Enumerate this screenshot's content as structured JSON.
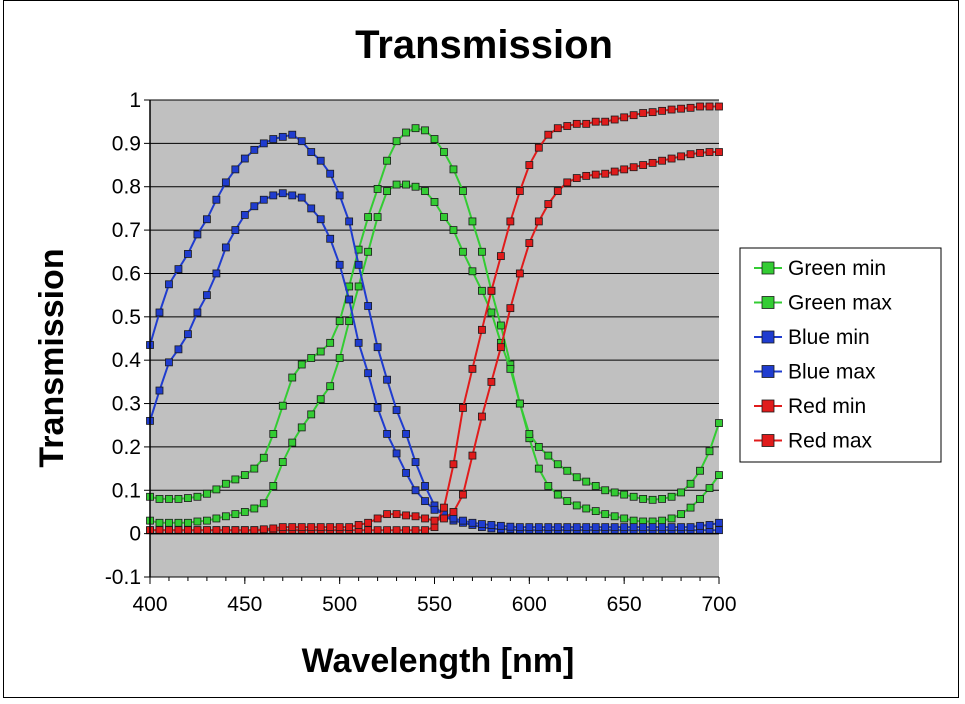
{
  "chart_data": {
    "type": "line",
    "title": "Transmission",
    "xlabel": "Wavelength [nm]",
    "ylabel": "Transmission",
    "xlim": [
      400,
      700
    ],
    "ylim": [
      -0.1,
      1
    ],
    "x_ticks": [
      400,
      450,
      500,
      550,
      600,
      650,
      700
    ],
    "x_tick_labels": [
      "400",
      "450",
      "500",
      "550",
      "600",
      "650",
      "700"
    ],
    "y_ticks": [
      -0.1,
      0,
      0.1,
      0.2,
      0.3,
      0.4,
      0.5,
      0.6,
      0.7,
      0.8,
      0.9,
      1
    ],
    "y_tick_labels": [
      "-0.1",
      "0",
      "0.1",
      "0.2",
      "0.3",
      "0.4",
      "0.5",
      "0.6",
      "0.7",
      "0.8",
      "0.9",
      "1"
    ],
    "grid": "horizontal",
    "plot_background": "#c0c0c0",
    "legend_position": "right",
    "marker": "square",
    "x": [
      400,
      405,
      410,
      415,
      420,
      425,
      430,
      435,
      440,
      445,
      450,
      455,
      460,
      465,
      470,
      475,
      480,
      485,
      490,
      495,
      500,
      505,
      510,
      515,
      520,
      525,
      530,
      535,
      540,
      545,
      550,
      555,
      560,
      565,
      570,
      575,
      580,
      585,
      590,
      595,
      600,
      605,
      610,
      615,
      620,
      625,
      630,
      635,
      640,
      645,
      650,
      655,
      660,
      665,
      670,
      675,
      680,
      685,
      690,
      695,
      700
    ],
    "series": [
      {
        "name": "Green min",
        "color": "#33cc33",
        "values": [
          0.085,
          0.08,
          0.08,
          0.08,
          0.082,
          0.085,
          0.092,
          0.102,
          0.115,
          0.125,
          0.135,
          0.15,
          0.175,
          0.23,
          0.295,
          0.36,
          0.39,
          0.405,
          0.42,
          0.44,
          0.49,
          0.57,
          0.655,
          0.73,
          0.795,
          0.86,
          0.905,
          0.925,
          0.935,
          0.93,
          0.91,
          0.88,
          0.84,
          0.79,
          0.72,
          0.65,
          0.56,
          0.48,
          0.39,
          0.3,
          0.22,
          0.15,
          0.11,
          0.09,
          0.075,
          0.065,
          0.058,
          0.052,
          0.045,
          0.04,
          0.035,
          0.03,
          0.028,
          0.028,
          0.03,
          0.035,
          0.045,
          0.06,
          0.08,
          0.105,
          0.135
        ]
      },
      {
        "name": "Green max",
        "color": "#33cc33",
        "values": [
          0.03,
          0.025,
          0.025,
          0.025,
          0.025,
          0.028,
          0.03,
          0.035,
          0.04,
          0.045,
          0.05,
          0.058,
          0.07,
          0.11,
          0.165,
          0.21,
          0.245,
          0.275,
          0.31,
          0.34,
          0.405,
          0.49,
          0.57,
          0.65,
          0.73,
          0.79,
          0.805,
          0.805,
          0.8,
          0.79,
          0.765,
          0.73,
          0.7,
          0.65,
          0.605,
          0.56,
          0.51,
          0.44,
          0.38,
          0.3,
          0.23,
          0.2,
          0.18,
          0.16,
          0.145,
          0.13,
          0.12,
          0.11,
          0.1,
          0.095,
          0.09,
          0.085,
          0.08,
          0.078,
          0.08,
          0.085,
          0.095,
          0.115,
          0.145,
          0.19,
          0.255
        ]
      },
      {
        "name": "Blue min",
        "color": "#1f3ccf",
        "values": [
          0.435,
          0.51,
          0.575,
          0.61,
          0.645,
          0.69,
          0.725,
          0.77,
          0.81,
          0.84,
          0.865,
          0.885,
          0.9,
          0.91,
          0.915,
          0.92,
          0.905,
          0.88,
          0.86,
          0.83,
          0.78,
          0.72,
          0.62,
          0.525,
          0.43,
          0.355,
          0.285,
          0.23,
          0.165,
          0.11,
          0.065,
          0.04,
          0.03,
          0.025,
          0.02,
          0.015,
          0.012,
          0.01,
          0.01,
          0.008,
          0.008,
          0.008,
          0.008,
          0.008,
          0.008,
          0.008,
          0.008,
          0.008,
          0.008,
          0.008,
          0.008,
          0.008,
          0.008,
          0.008,
          0.008,
          0.008,
          0.008,
          0.008,
          0.008,
          0.008,
          0.008
        ]
      },
      {
        "name": "Blue max",
        "color": "#1f3ccf",
        "values": [
          0.26,
          0.33,
          0.395,
          0.425,
          0.46,
          0.51,
          0.55,
          0.6,
          0.66,
          0.7,
          0.735,
          0.755,
          0.77,
          0.78,
          0.785,
          0.78,
          0.775,
          0.75,
          0.725,
          0.68,
          0.62,
          0.54,
          0.44,
          0.37,
          0.29,
          0.23,
          0.185,
          0.14,
          0.1,
          0.075,
          0.055,
          0.045,
          0.035,
          0.03,
          0.025,
          0.022,
          0.02,
          0.018,
          0.016,
          0.015,
          0.015,
          0.015,
          0.015,
          0.015,
          0.015,
          0.015,
          0.015,
          0.015,
          0.015,
          0.015,
          0.015,
          0.015,
          0.015,
          0.015,
          0.015,
          0.015,
          0.015,
          0.015,
          0.018,
          0.02,
          0.025
        ]
      },
      {
        "name": "Red min",
        "color": "#e01b1b",
        "values": [
          0.008,
          0.008,
          0.008,
          0.008,
          0.008,
          0.008,
          0.008,
          0.008,
          0.008,
          0.008,
          0.008,
          0.008,
          0.008,
          0.008,
          0.008,
          0.008,
          0.008,
          0.008,
          0.008,
          0.008,
          0.008,
          0.008,
          0.008,
          0.008,
          0.008,
          0.008,
          0.008,
          0.008,
          0.008,
          0.008,
          0.015,
          0.06,
          0.16,
          0.29,
          0.38,
          0.47,
          0.56,
          0.64,
          0.72,
          0.79,
          0.85,
          0.89,
          0.92,
          0.935,
          0.94,
          0.945,
          0.945,
          0.95,
          0.95,
          0.955,
          0.96,
          0.965,
          0.97,
          0.972,
          0.975,
          0.978,
          0.98,
          0.982,
          0.985,
          0.985,
          0.985
        ]
      },
      {
        "name": "Red max",
        "color": "#e01b1b",
        "values": [
          0.008,
          0.008,
          0.008,
          0.008,
          0.008,
          0.008,
          0.008,
          0.008,
          0.008,
          0.008,
          0.008,
          0.008,
          0.01,
          0.012,
          0.015,
          0.015,
          0.015,
          0.015,
          0.015,
          0.015,
          0.015,
          0.015,
          0.02,
          0.025,
          0.035,
          0.045,
          0.045,
          0.042,
          0.04,
          0.035,
          0.03,
          0.035,
          0.05,
          0.09,
          0.18,
          0.27,
          0.35,
          0.43,
          0.52,
          0.6,
          0.67,
          0.72,
          0.76,
          0.79,
          0.81,
          0.82,
          0.825,
          0.828,
          0.83,
          0.835,
          0.84,
          0.845,
          0.85,
          0.855,
          0.86,
          0.865,
          0.87,
          0.875,
          0.878,
          0.88,
          0.88
        ]
      }
    ]
  }
}
